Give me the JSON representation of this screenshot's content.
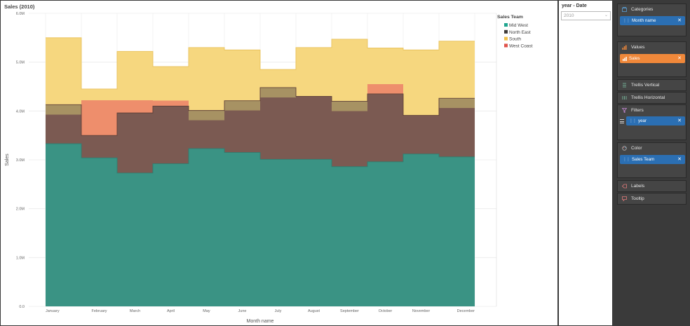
{
  "chart": {
    "title": "Sales (2010)"
  },
  "chart_data": {
    "type": "area",
    "stacked": true,
    "step": true,
    "title": "Sales (2010)",
    "xlabel": "Month name",
    "ylabel": "Sales",
    "categories": [
      "January",
      "February",
      "March",
      "April",
      "May",
      "June",
      "July",
      "August",
      "September",
      "October",
      "November",
      "December"
    ],
    "yticks": [
      "0.0",
      "1.0M",
      "2.0M",
      "3.0M",
      "4.0M",
      "5.0M",
      "6.0M"
    ],
    "ylim": [
      0,
      6000000
    ],
    "grid": true,
    "legend_title": "Sales Team",
    "legend_position": "right",
    "series": [
      {
        "name": "Mid West",
        "color": "#3a9384",
        "values": [
          3330000,
          3040000,
          2730000,
          2920000,
          3230000,
          3150000,
          3010000,
          3010000,
          2860000,
          2960000,
          3120000,
          3060000
        ]
      },
      {
        "name": "North East",
        "color": "#7b5a52",
        "values": [
          800000,
          460000,
          1230000,
          1180000,
          780000,
          1060000,
          1470000,
          1290000,
          1340000,
          1390000,
          790000,
          1200000
        ]
      },
      {
        "name": "West Coast",
        "color": "#ee8e6c",
        "values": [
          0,
          720000,
          260000,
          110000,
          0,
          0,
          0,
          0,
          0,
          200000,
          0,
          0
        ]
      },
      {
        "name": "South",
        "color": "#f6d77f",
        "values": [
          1370000,
          230000,
          1000000,
          700000,
          1290000,
          1040000,
          370000,
          1000000,
          1270000,
          740000,
          1340000,
          1170000
        ]
      }
    ],
    "south_over": [
      true,
      false,
      false,
      false,
      true,
      true,
      true,
      false,
      true,
      false,
      false,
      true
    ],
    "legend_order": [
      "Mid West",
      "North East",
      "South",
      "West Coast"
    ]
  },
  "filter": {
    "title": "year - Date",
    "value": "2010"
  },
  "fields": {
    "categories": {
      "label": "Categories",
      "chip": "Month name",
      "icon": "categories-icon"
    },
    "values": {
      "label": "Values",
      "chip": "Sales",
      "icon": "values-icon"
    },
    "trellis_vertical": {
      "label": "Trellis Vertical",
      "icon": "trellis-vertical-icon"
    },
    "trellis_horizontal": {
      "label": "Trellis Horizontal",
      "icon": "trellis-horizontal-icon"
    },
    "filters": {
      "label": "Filters",
      "chip": "year",
      "icon": "filter-icon"
    },
    "color": {
      "label": "Color",
      "chip": "Sales Team",
      "icon": "color-icon"
    },
    "labels": {
      "label": "Labels",
      "icon": "labels-icon"
    },
    "tooltip": {
      "label": "Tooltip",
      "icon": "tooltip-icon"
    }
  },
  "colors": {
    "chip_blue": "#2b6fb3",
    "chip_orange": "#f0883a",
    "panel_dark": "#3a3a3a"
  }
}
